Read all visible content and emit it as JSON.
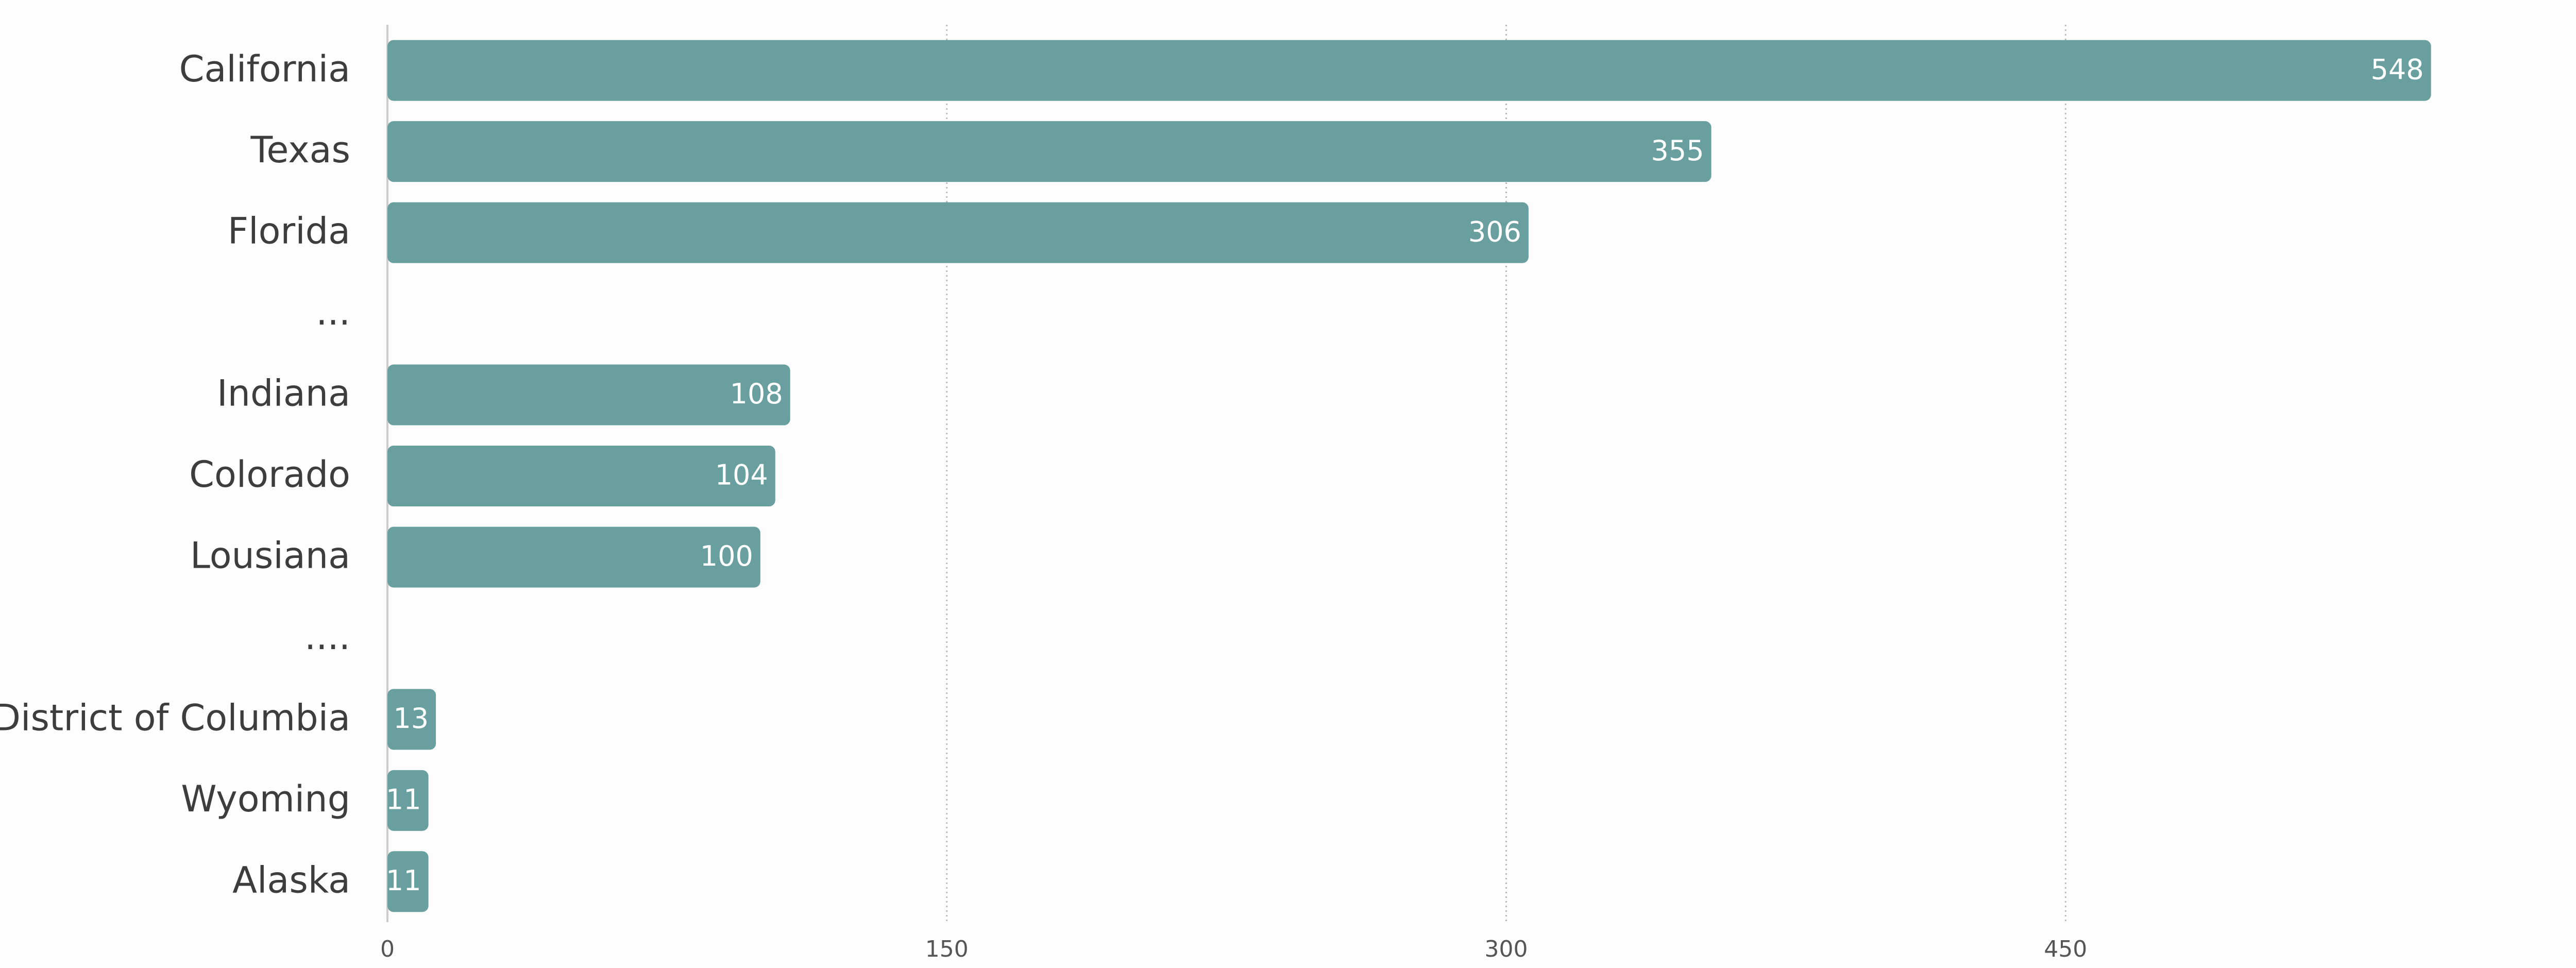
{
  "chart_data": {
    "type": "bar",
    "orientation": "horizontal",
    "categories": [
      "California",
      "Texas",
      "Florida",
      "...",
      "Indiana",
      "Colorado",
      "Lousiana",
      "....",
      "District of Columbia",
      "Wyoming",
      "Alaska"
    ],
    "values": [
      548,
      355,
      306,
      null,
      108,
      104,
      100,
      null,
      13,
      11,
      11
    ],
    "color": "#6a9fa0",
    "xlim": [
      0,
      600
    ],
    "xticks": [
      0,
      150,
      300,
      450,
      600
    ],
    "grid": true
  }
}
